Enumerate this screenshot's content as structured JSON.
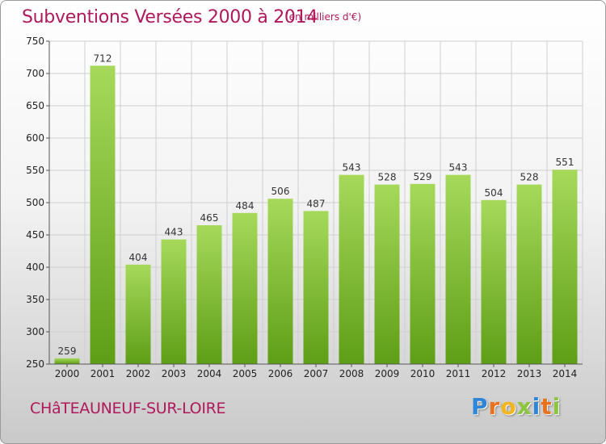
{
  "title": "Subventions Versées 2000 à 2014",
  "unit_note": "(en milliers d'€)",
  "town": "CHâTEAUNEUF-SUR-LOIRE",
  "logo": {
    "letters": [
      "P",
      "r",
      "o",
      "x",
      "i",
      "t",
      "i"
    ],
    "colors": [
      "#2f86d9",
      "#e8731c",
      "#f2b51d",
      "#8cc63f",
      "#2f86d9",
      "#e8731c",
      "#8cc63f"
    ]
  },
  "colors": {
    "bar_top": "#a6d95a",
    "bar_bottom": "#5e9e17",
    "axis": "#555555",
    "grid": "#cfcfcf"
  },
  "chart_data": {
    "type": "bar",
    "categories": [
      "2000",
      "2001",
      "2002",
      "2003",
      "2004",
      "2005",
      "2006",
      "2007",
      "2008",
      "2009",
      "2010",
      "2011",
      "2012",
      "2013",
      "2014"
    ],
    "values": [
      259,
      712,
      404,
      443,
      465,
      484,
      506,
      487,
      543,
      528,
      529,
      543,
      504,
      528,
      551
    ],
    "ylim": [
      250,
      750
    ],
    "yticks": [
      250,
      300,
      350,
      400,
      450,
      500,
      550,
      600,
      650,
      700,
      750
    ],
    "grid": true,
    "data_labels": true
  }
}
